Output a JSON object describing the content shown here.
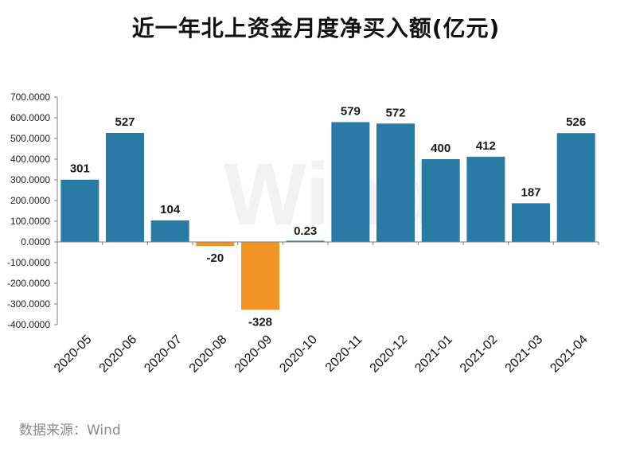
{
  "title": "近一年北上资金月度净买入额(亿元)",
  "source": "数据来源：Wind",
  "watermark": "Wind",
  "colors": {
    "positive": "#2a7aa6",
    "negative": "#f39325",
    "axis": "#7f7f7f"
  },
  "chart_data": {
    "type": "bar",
    "title": "近一年北上资金月度净买入额(亿元)",
    "categories": [
      "2020-05",
      "2020-06",
      "2020-07",
      "2020-08",
      "2020-09",
      "2020-10",
      "2020-11",
      "2020-12",
      "2021-01",
      "2021-02",
      "2021-03",
      "2021-04"
    ],
    "values": [
      301,
      527,
      104,
      -20,
      -328,
      0.23,
      579,
      572,
      400,
      412,
      187,
      526
    ],
    "data_labels": [
      "301",
      "527",
      "104",
      "-20",
      "-328",
      "0.23",
      "579",
      "572",
      "400",
      "412",
      "187",
      "526"
    ],
    "yticks": [
      700,
      600,
      500,
      400,
      300,
      200,
      100,
      0,
      -100,
      -200,
      -300,
      -400
    ],
    "ytick_labels": [
      "700.0000",
      "600.0000",
      "500.0000",
      "400.0000",
      "300.0000",
      "200.0000",
      "100.0000",
      "0.0000",
      "-100.0000",
      "-200.0000",
      "-300.0000",
      "-400.0000"
    ],
    "ylim": [
      -400,
      700
    ],
    "xlabel": "",
    "ylabel": "",
    "grid": false
  }
}
